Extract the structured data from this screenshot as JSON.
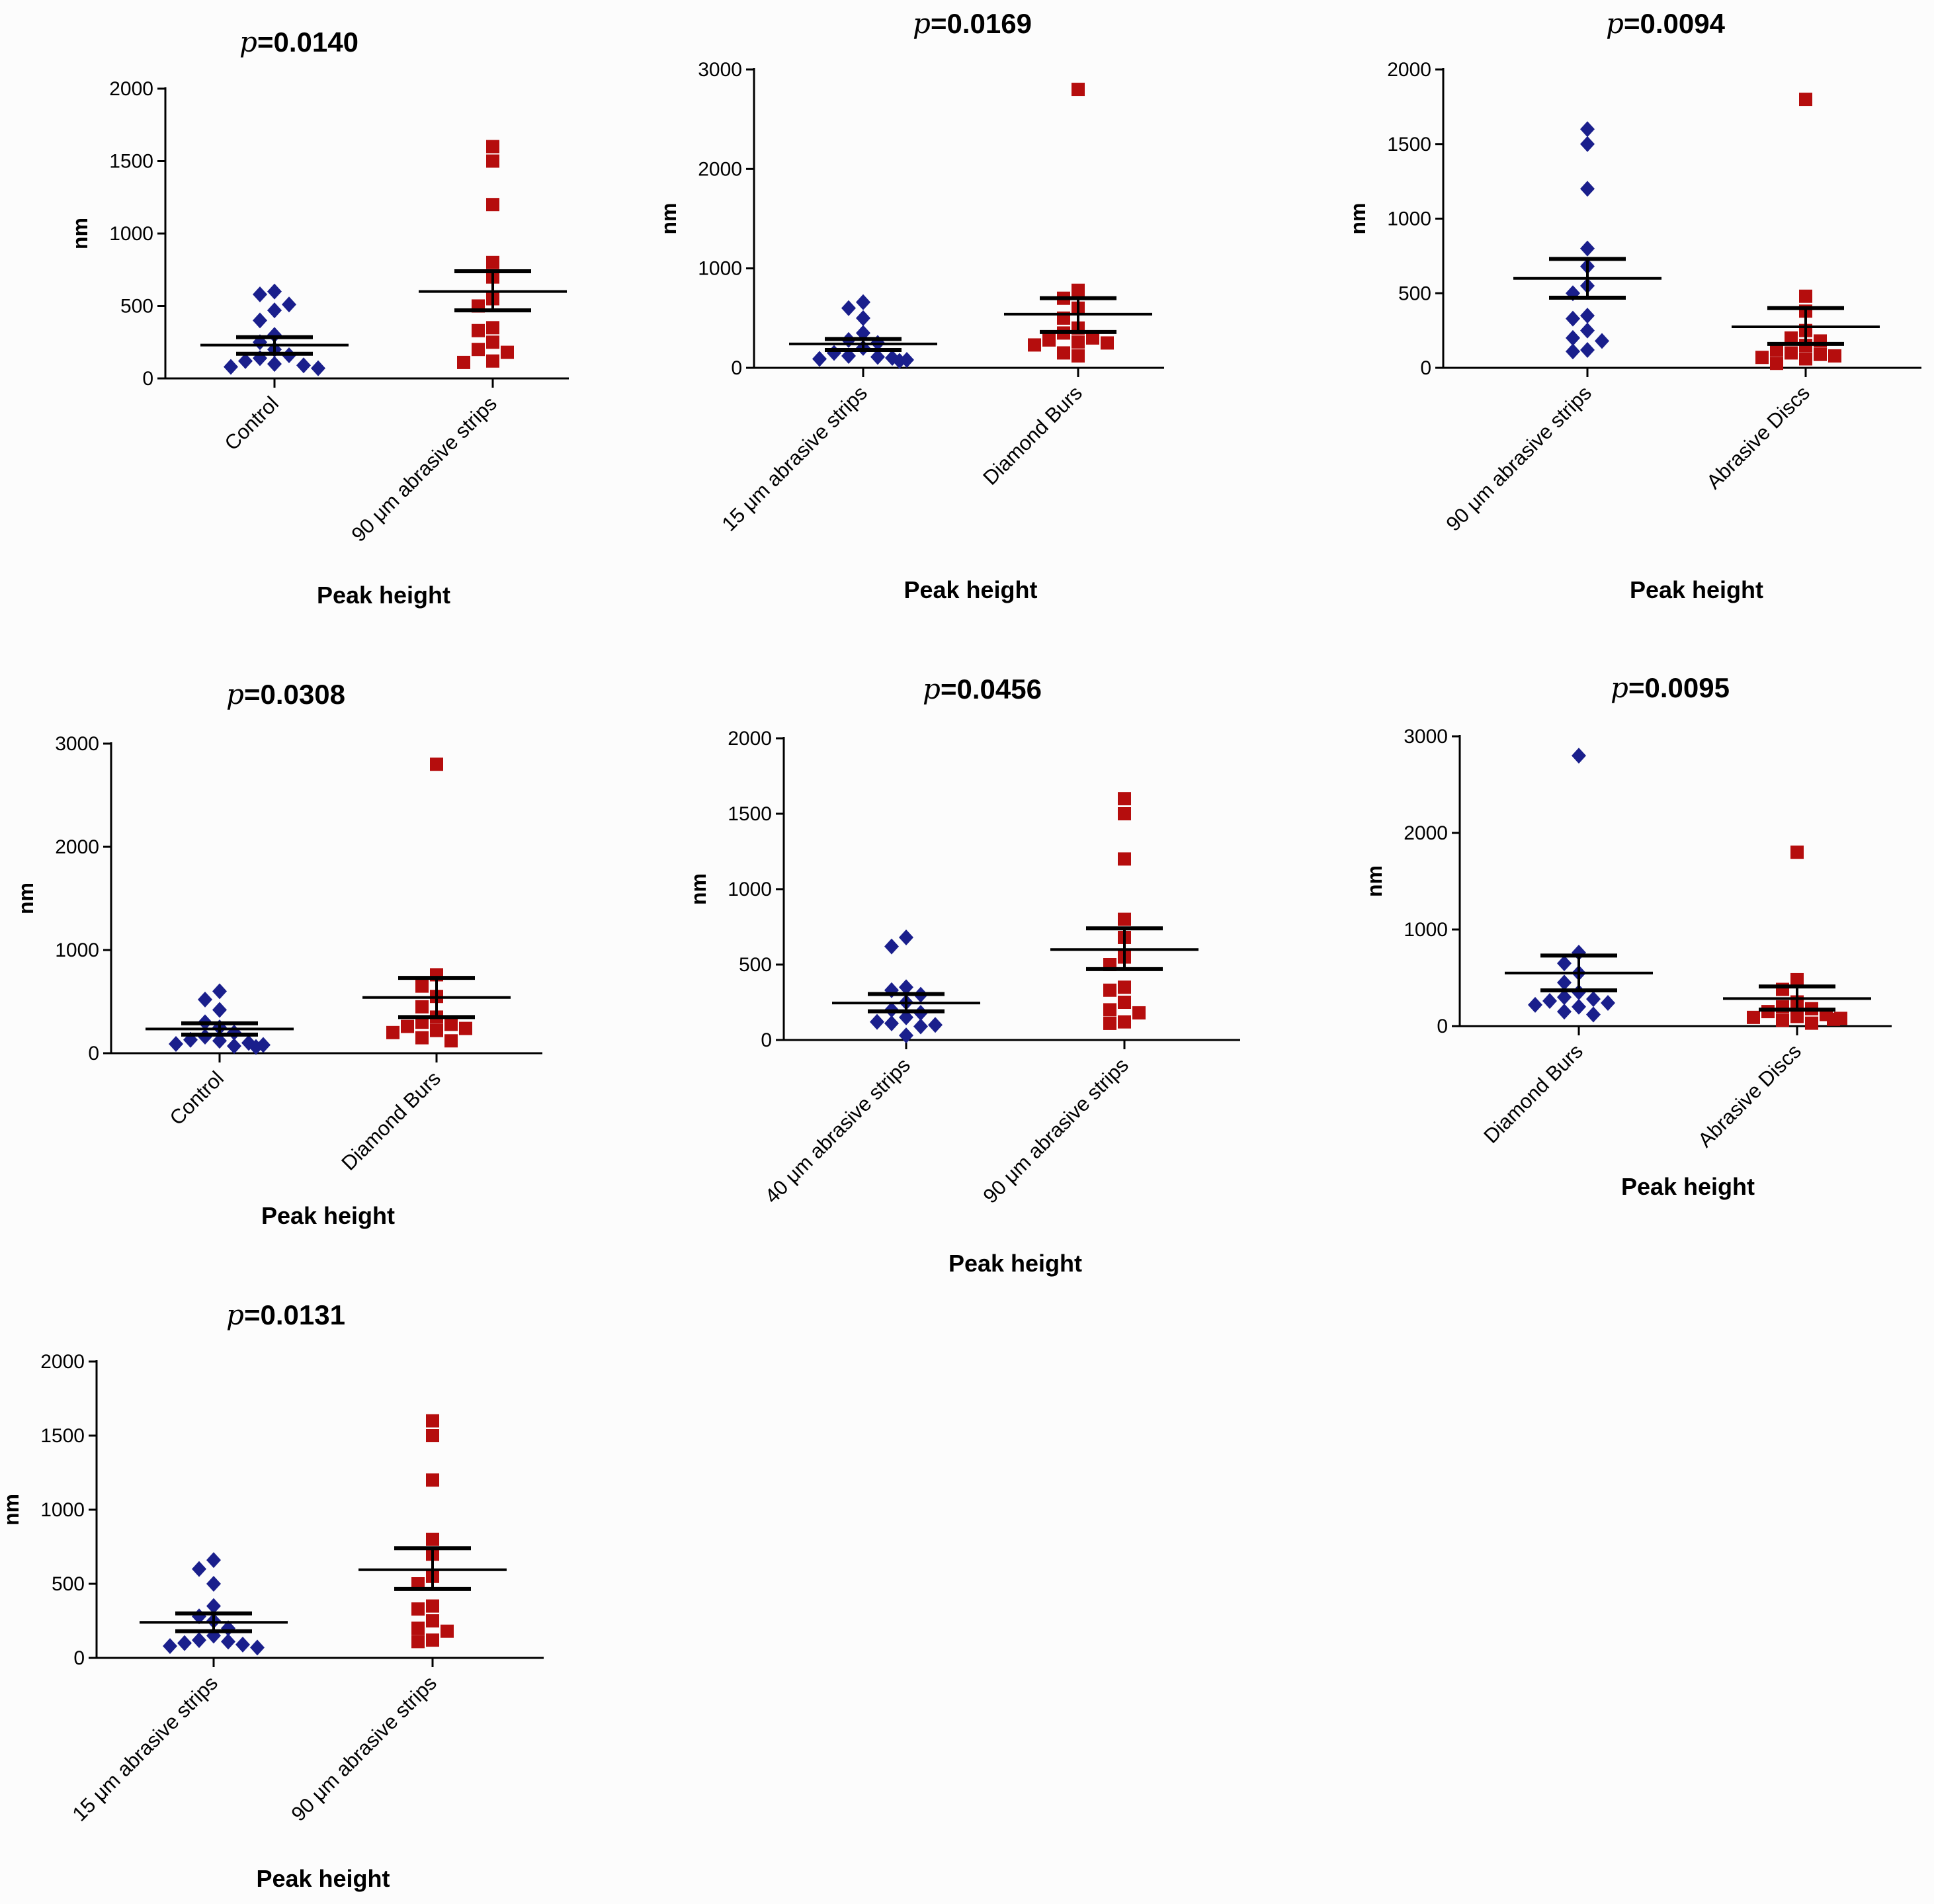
{
  "colors": {
    "group1": "#1a1f8c",
    "group2": "#b50d0d",
    "axis": "#000000"
  },
  "chart_data": [
    {
      "type": "scatter",
      "title_p": "p",
      "title_value": "=0.0140",
      "xlabel": "Peak height",
      "ylabel": "nm",
      "ylim": [
        0,
        2000
      ],
      "yticks": [
        0,
        500,
        1000,
        1500,
        2000
      ],
      "categories": [
        "Control",
        "90 μm abrasive strips"
      ],
      "series": [
        {
          "values": [
            600,
            580,
            510,
            470,
            400,
            300,
            250,
            200,
            160,
            140,
            120,
            100,
            90,
            80,
            70
          ],
          "mean": 230,
          "sem_low": 170,
          "sem_high": 285
        },
        {
          "values": [
            1600,
            1500,
            1200,
            800,
            700,
            550,
            500,
            350,
            330,
            250,
            200,
            180,
            120,
            110
          ],
          "mean": 600,
          "sem_low": 470,
          "sem_high": 740
        }
      ]
    },
    {
      "type": "scatter",
      "title_p": "p",
      "title_value": "=0.0169",
      "xlabel": "Peak height",
      "ylabel": "nm",
      "ylim": [
        0,
        3000
      ],
      "yticks": [
        0,
        1000,
        2000,
        3000
      ],
      "categories": [
        "15 μm abrasive strips",
        "Diamond Burs"
      ],
      "series": [
        {
          "values": [
            660,
            600,
            500,
            350,
            280,
            250,
            200,
            150,
            120,
            110,
            100,
            90,
            80,
            70
          ],
          "mean": 240,
          "sem_low": 180,
          "sem_high": 290
        },
        {
          "values": [
            2800,
            780,
            700,
            600,
            500,
            400,
            350,
            300,
            280,
            260,
            250,
            230,
            150,
            120
          ],
          "mean": 540,
          "sem_low": 360,
          "sem_high": 700
        }
      ]
    },
    {
      "type": "scatter",
      "title_p": "p",
      "title_value": "=0.0094",
      "xlabel": "Peak height",
      "ylabel": "nm",
      "ylim": [
        0,
        2000
      ],
      "yticks": [
        0,
        500,
        1000,
        1500,
        2000
      ],
      "categories": [
        "90 μm abrasive strips",
        "Abrasive Discs"
      ],
      "series": [
        {
          "values": [
            1600,
            1500,
            1200,
            800,
            680,
            550,
            500,
            350,
            330,
            250,
            200,
            180,
            120,
            110
          ],
          "mean": 600,
          "sem_low": 470,
          "sem_high": 730
        },
        {
          "values": [
            1800,
            480,
            380,
            250,
            200,
            180,
            150,
            120,
            100,
            90,
            80,
            70,
            60,
            30
          ],
          "mean": 275,
          "sem_low": 160,
          "sem_high": 400
        }
      ]
    },
    {
      "type": "scatter",
      "title_p": "p",
      "title_value": "=0.0308",
      "xlabel": "Peak height",
      "ylabel": "nm",
      "ylim": [
        0,
        3000
      ],
      "yticks": [
        0,
        1000,
        2000,
        3000
      ],
      "categories": [
        "Control",
        "Diamond Burs"
      ],
      "series": [
        {
          "values": [
            600,
            520,
            420,
            300,
            250,
            200,
            160,
            130,
            120,
            100,
            90,
            80,
            70,
            60
          ],
          "mean": 235,
          "sem_low": 180,
          "sem_high": 290
        },
        {
          "values": [
            2800,
            760,
            650,
            550,
            450,
            350,
            300,
            280,
            260,
            240,
            220,
            200,
            150,
            120
          ],
          "mean": 540,
          "sem_low": 350,
          "sem_high": 730
        }
      ]
    },
    {
      "type": "scatter",
      "title_p": "p",
      "title_value": "=0.0456",
      "xlabel": "Peak height",
      "ylabel": "nm",
      "ylim": [
        0,
        2000
      ],
      "yticks": [
        0,
        500,
        1000,
        1500,
        2000
      ],
      "categories": [
        "40 μm abrasive strips",
        "90 μm abrasive strips"
      ],
      "series": [
        {
          "values": [
            680,
            620,
            350,
            330,
            300,
            250,
            200,
            180,
            150,
            120,
            110,
            100,
            90,
            30
          ],
          "mean": 245,
          "sem_low": 190,
          "sem_high": 305
        },
        {
          "values": [
            1600,
            1500,
            1200,
            800,
            680,
            550,
            500,
            350,
            330,
            250,
            200,
            180,
            120,
            110
          ],
          "mean": 600,
          "sem_low": 470,
          "sem_high": 740
        }
      ]
    },
    {
      "type": "scatter",
      "title_p": "p",
      "title_value": "=0.0095",
      "xlabel": "Peak height",
      "ylabel": "nm",
      "ylim": [
        0,
        3000
      ],
      "yticks": [
        0,
        1000,
        2000,
        3000
      ],
      "categories": [
        "Diamond Burs",
        "Abrasive Discs"
      ],
      "series": [
        {
          "values": [
            2800,
            760,
            650,
            550,
            450,
            350,
            300,
            280,
            260,
            240,
            220,
            200,
            150,
            120
          ],
          "mean": 550,
          "sem_low": 370,
          "sem_high": 730
        },
        {
          "values": [
            1800,
            480,
            380,
            250,
            200,
            180,
            150,
            120,
            100,
            90,
            80,
            70,
            60,
            30
          ],
          "mean": 285,
          "sem_low": 170,
          "sem_high": 410
        }
      ]
    },
    {
      "type": "scatter",
      "title_p": "p",
      "title_value": "=0.0131",
      "xlabel": "Peak height",
      "ylabel": "nm",
      "ylim": [
        0,
        2000
      ],
      "yticks": [
        0,
        500,
        1000,
        1500,
        2000
      ],
      "categories": [
        "15 μm abrasive strips",
        "90 μm abrasive strips"
      ],
      "series": [
        {
          "values": [
            660,
            600,
            500,
            350,
            280,
            250,
            200,
            150,
            120,
            110,
            100,
            90,
            80,
            70
          ],
          "mean": 240,
          "sem_low": 180,
          "sem_high": 300
        },
        {
          "values": [
            1600,
            1500,
            1200,
            800,
            700,
            550,
            500,
            350,
            330,
            250,
            200,
            180,
            120,
            110
          ],
          "mean": 595,
          "sem_low": 465,
          "sem_high": 740
        }
      ]
    }
  ]
}
